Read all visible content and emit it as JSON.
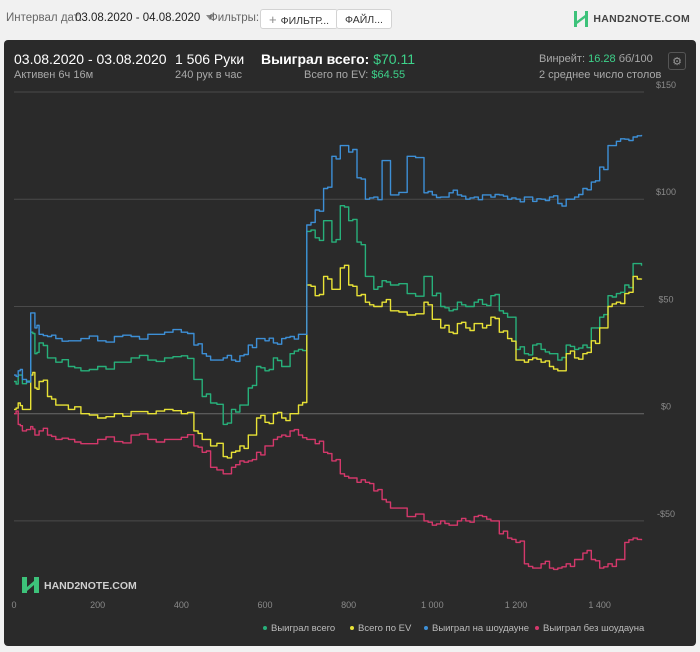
{
  "toolbar": {
    "interval_label": "Интервал дат:",
    "interval_value": "03.08.2020 - 04.08.2020",
    "filters_label": "Фильтры:",
    "filter_button": "ФИЛЬТР...",
    "files_button": "ФАЙЛ...",
    "logo_text": "HAND2NOTE.COM"
  },
  "summary": {
    "date_range": "03.08.2020 - 03.08.2020",
    "active": "Активен 6ч 16м",
    "hands": "1 506 Руки",
    "hands_per_hour": "240 рук в час",
    "won_label": "Выиграл всего:",
    "won_value": "$70.11",
    "ev_label": "Всего по EV:",
    "ev_value": "$64.55",
    "winrate_label": "Винрейт:",
    "winrate_value": "16.28",
    "winrate_unit": "бб/100",
    "tables": "2 среднее число столов"
  },
  "watermark": "HAND2NOTE.COM",
  "chart_data": {
    "type": "line",
    "xlabel": "",
    "ylabel": "",
    "x_ticks": [
      0,
      200,
      400,
      600,
      800,
      1000,
      1200,
      1400
    ],
    "x_tick_labels": [
      "0",
      "200",
      "400",
      "600",
      "800",
      "1 000",
      "1 200",
      "1 400"
    ],
    "y_ticks": [
      150,
      100,
      50,
      0,
      -50
    ],
    "y_tick_labels": [
      "$150",
      "$100",
      "$50",
      "$0",
      "-$50"
    ],
    "xlim": [
      0,
      1506
    ],
    "ylim": [
      -85,
      150
    ],
    "grid": true,
    "legend_position": "bottom-right",
    "series": [
      {
        "name": "Выиграл всего",
        "color": "#27b07a",
        "x": [
          0,
          10,
          20,
          40,
          50,
          60,
          80,
          100,
          130,
          160,
          200,
          240,
          280,
          320,
          360,
          400,
          430,
          450,
          470,
          500,
          520,
          540,
          560,
          580,
          600,
          620,
          640,
          660,
          680,
          700,
          720,
          740,
          760,
          780,
          800,
          820,
          840,
          860,
          880,
          900,
          940,
          980,
          1000,
          1020,
          1040,
          1060,
          1080,
          1100,
          1120,
          1140,
          1160,
          1180,
          1200,
          1220,
          1240,
          1260,
          1280,
          1300,
          1320,
          1340,
          1360,
          1380,
          1400,
          1420,
          1440,
          1460,
          1480,
          1500
        ],
        "values": [
          15,
          18,
          14,
          38,
          28,
          33,
          26,
          24,
          22,
          20,
          22,
          24,
          26,
          25,
          26,
          27,
          16,
          8,
          5,
          -5,
          2,
          4,
          12,
          22,
          20,
          26,
          22,
          28,
          30,
          85,
          82,
          90,
          80,
          97,
          90,
          80,
          64,
          58,
          62,
          60,
          56,
          64,
          55,
          50,
          48,
          52,
          50,
          52,
          51,
          55,
          48,
          45,
          30,
          28,
          32,
          30,
          28,
          25,
          32,
          30,
          32,
          40,
          45,
          55,
          56,
          60,
          70,
          69
        ]
      },
      {
        "name": "Всего по EV",
        "color": "#e8e236",
        "x": [
          0,
          10,
          20,
          40,
          50,
          60,
          80,
          100,
          130,
          160,
          200,
          240,
          280,
          320,
          360,
          400,
          430,
          450,
          470,
          500,
          520,
          540,
          560,
          580,
          600,
          620,
          640,
          660,
          680,
          700,
          720,
          740,
          760,
          780,
          800,
          820,
          840,
          860,
          880,
          900,
          940,
          980,
          1000,
          1020,
          1040,
          1060,
          1080,
          1100,
          1120,
          1140,
          1160,
          1180,
          1200,
          1220,
          1240,
          1260,
          1280,
          1300,
          1320,
          1340,
          1360,
          1380,
          1400,
          1420,
          1440,
          1460,
          1480,
          1500
        ],
        "values": [
          2,
          5,
          2,
          18,
          12,
          15,
          8,
          4,
          2,
          0,
          -2,
          0,
          1,
          0,
          2,
          0,
          -8,
          -12,
          -15,
          -20,
          -18,
          -15,
          -10,
          -2,
          -4,
          0,
          -2,
          0,
          4,
          60,
          55,
          64,
          58,
          68,
          60,
          55,
          52,
          50,
          52,
          48,
          46,
          52,
          44,
          40,
          38,
          42,
          40,
          42,
          40,
          45,
          38,
          35,
          25,
          24,
          26,
          24,
          22,
          20,
          28,
          26,
          28,
          34,
          40,
          50,
          52,
          56,
          64,
          63
        ]
      },
      {
        "name": "Выиграл на шоудауне",
        "color": "#3d8fd6",
        "x": [
          0,
          10,
          20,
          40,
          50,
          60,
          80,
          100,
          130,
          160,
          200,
          240,
          280,
          320,
          360,
          400,
          430,
          450,
          470,
          500,
          520,
          540,
          560,
          580,
          600,
          620,
          640,
          660,
          680,
          700,
          720,
          740,
          760,
          780,
          800,
          820,
          840,
          860,
          880,
          900,
          940,
          980,
          1000,
          1020,
          1040,
          1060,
          1080,
          1100,
          1120,
          1140,
          1160,
          1180,
          1200,
          1220,
          1240,
          1260,
          1280,
          1300,
          1320,
          1340,
          1360,
          1380,
          1400,
          1420,
          1440,
          1460,
          1480,
          1500
        ],
        "values": [
          18,
          20,
          16,
          47,
          40,
          37,
          36,
          35,
          34,
          35,
          34,
          36,
          36,
          37,
          38,
          38,
          32,
          28,
          25,
          26,
          25,
          27,
          32,
          35,
          34,
          33,
          35,
          36,
          37,
          88,
          95,
          105,
          120,
          125,
          122,
          110,
          100,
          101,
          118,
          102,
          120,
          103,
          102,
          101,
          103,
          102,
          100,
          101,
          102,
          101,
          102,
          100,
          100,
          101,
          99,
          100,
          101,
          98,
          100,
          101,
          105,
          108,
          115,
          125,
          127,
          128,
          129,
          130
        ]
      },
      {
        "name": "Выиграл без шоудауна",
        "color": "#d4386b",
        "x": [
          0,
          10,
          20,
          40,
          50,
          60,
          80,
          100,
          130,
          160,
          200,
          240,
          280,
          320,
          360,
          400,
          430,
          450,
          470,
          500,
          520,
          540,
          560,
          580,
          600,
          620,
          640,
          660,
          680,
          700,
          720,
          740,
          760,
          780,
          800,
          820,
          840,
          860,
          880,
          900,
          940,
          980,
          1000,
          1020,
          1040,
          1060,
          1080,
          1100,
          1120,
          1140,
          1160,
          1180,
          1200,
          1220,
          1240,
          1260,
          1280,
          1300,
          1320,
          1340,
          1360,
          1380,
          1400,
          1420,
          1440,
          1460,
          1480,
          1500
        ],
        "values": [
          0,
          -5,
          -8,
          -6,
          -10,
          -8,
          -10,
          -12,
          -12,
          -14,
          -12,
          -13,
          -10,
          -12,
          -12,
          -11,
          -15,
          -18,
          -25,
          -28,
          -25,
          -22,
          -22,
          -18,
          -15,
          -12,
          -10,
          -8,
          -10,
          -12,
          -14,
          -18,
          -22,
          -28,
          -30,
          -32,
          -32,
          -36,
          -40,
          -44,
          -48,
          -50,
          -52,
          -50,
          -52,
          -50,
          -50,
          -48,
          -48,
          -50,
          -56,
          -58,
          -60,
          -70,
          -72,
          -70,
          -72,
          -72,
          -70,
          -68,
          -65,
          -68,
          -72,
          -70,
          -68,
          -60,
          -58,
          -59
        ]
      }
    ]
  }
}
